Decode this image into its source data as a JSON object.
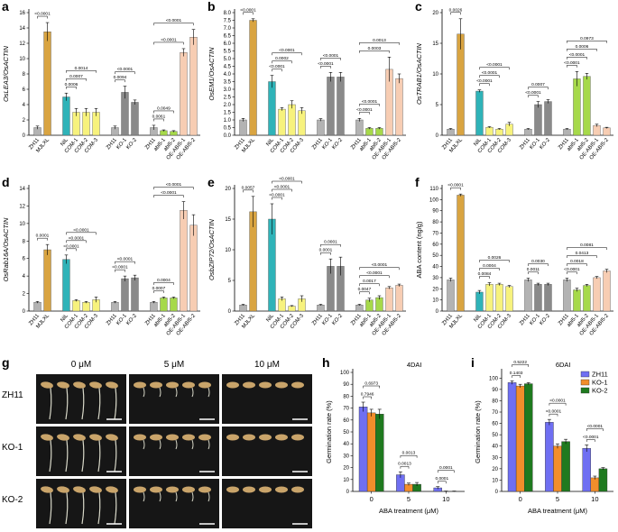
{
  "chart_data": [
    {
      "type": "bar",
      "panel": "a",
      "ylabel": "OsLEA3/OsACTIN",
      "categories": [
        "ZH11",
        "MJLXL",
        "NIL",
        "COM-1",
        "COM-2",
        "COM-3",
        "ZH11",
        "KO-1",
        "KO-2",
        "ZH11",
        "abi5-1",
        "abi5-2",
        "OE-ABI5-1",
        "OE-ABI5-2"
      ],
      "values": [
        1.0,
        13.5,
        5.0,
        3.0,
        3.0,
        3.0,
        1.0,
        5.6,
        4.3,
        1.0,
        0.6,
        0.5,
        10.8,
        12.8
      ],
      "errors": [
        0.2,
        1.2,
        0.5,
        0.5,
        0.5,
        0.5,
        0.2,
        0.8,
        0.3,
        0.3,
        0.1,
        0.1,
        0.5,
        1.0
      ],
      "colors": [
        "#b3b3b3",
        "#d9a441",
        "#2fb3b8",
        "#f7f27d",
        "#f7f27d",
        "#f7f27d",
        "#b3b3b3",
        "#8a8a8a",
        "#8a8a8a",
        "#b3b3b3",
        "#a6d94a",
        "#a6d94a",
        "#f7cdb3",
        "#f7cdb3"
      ],
      "ylim": [
        0,
        16
      ],
      "yticks": [
        0,
        2,
        4,
        6,
        8,
        10,
        12,
        14,
        16
      ],
      "annotations": [
        "<0.0001",
        "0.0006",
        "0.0007",
        "0.0014",
        "0.0094",
        "<0.0001",
        "0.0061",
        "0.0049",
        "<0.0001",
        "<0.0001"
      ]
    },
    {
      "type": "bar",
      "panel": "b",
      "ylabel": "OsEM1/OsACTIN",
      "categories": [
        "ZH11",
        "MJLXL",
        "NIL",
        "COM-1",
        "COM-2",
        "COM-3",
        "ZH11",
        "KO-1",
        "KO-2",
        "ZH11",
        "abi5-1",
        "abi5-2",
        "OE-ABI5-1",
        "OE-ABI5-2"
      ],
      "values": [
        1.0,
        7.5,
        3.5,
        1.7,
        2.0,
        1.6,
        1.0,
        3.8,
        3.8,
        1.0,
        0.45,
        0.45,
        4.3,
        3.7
      ],
      "errors": [
        0.1,
        0.1,
        0.4,
        0.1,
        0.25,
        0.2,
        0.08,
        0.3,
        0.3,
        0.1,
        0.05,
        0.05,
        0.8,
        0.3
      ],
      "colors": [
        "#b3b3b3",
        "#d9a441",
        "#2fb3b8",
        "#f7f27d",
        "#f7f27d",
        "#f7f27d",
        "#b3b3b3",
        "#8a8a8a",
        "#8a8a8a",
        "#b3b3b3",
        "#a6d94a",
        "#a6d94a",
        "#f7cdb3",
        "#f7cdb3"
      ],
      "ylim": [
        0,
        8
      ],
      "yticks": [
        {
          "value": 0,
          "label": "0.0"
        },
        0.5,
        {
          "value": 1,
          "label": "1.0"
        },
        1.5,
        {
          "value": 2,
          "label": "2.0"
        },
        2.5,
        {
          "value": 3,
          "label": "3.0"
        },
        3.5,
        {
          "value": 4,
          "label": "4.0"
        },
        4.5,
        {
          "value": 5,
          "label": "5.0"
        },
        5.5,
        {
          "value": 6,
          "label": "6.0"
        },
        6.5,
        {
          "value": 7,
          "label": "7.0"
        },
        7.5,
        {
          "value": 8,
          "label": "8.0"
        }
      ],
      "annotations": [
        "<0.0001",
        "<0.0001",
        "0.0002",
        "<0.0001",
        "<0.0001",
        "<0.0001",
        "<0.0001",
        "<0.0001",
        "0.0003",
        "0.0013"
      ]
    },
    {
      "type": "bar",
      "panel": "c",
      "ylabel": "OsTRAB1/OsACTIN",
      "categories": [
        "ZH11",
        "MJLXL",
        "NIL",
        "COM-1",
        "COM-2",
        "COM-3",
        "ZH11",
        "KO-1",
        "KO-2",
        "ZH11",
        "abi5-1",
        "abi5-2",
        "OE-ABI5-1",
        "OE-ABI5-2"
      ],
      "values": [
        1.0,
        16.5,
        7.2,
        1.3,
        1.0,
        1.8,
        1.0,
        5.0,
        5.5,
        1.0,
        9.2,
        9.6,
        1.6,
        1.2
      ],
      "errors": [
        0.1,
        2.5,
        0.2,
        0.1,
        0.1,
        0.3,
        0.1,
        0.5,
        0.3,
        0.1,
        1.2,
        0.5,
        0.2,
        0.1
      ],
      "colors": [
        "#b3b3b3",
        "#d9a441",
        "#2fb3b8",
        "#f7f27d",
        "#f7f27d",
        "#f7f27d",
        "#b3b3b3",
        "#8a8a8a",
        "#8a8a8a",
        "#b3b3b3",
        "#a6d94a",
        "#a6d94a",
        "#f7cdb3",
        "#f7cdb3"
      ],
      "ylim": [
        0,
        20
      ],
      "yticks": [
        0,
        5,
        10,
        15,
        20
      ],
      "annotations": [
        "0.0026",
        "<0.0001",
        "<0.0001",
        "<0.0001",
        "<0.0001",
        "0.0007",
        "<0.0001",
        "<0.0001",
        "0.0006",
        "0.0973"
      ]
    },
    {
      "type": "bar",
      "panel": "d",
      "ylabel": "OsRab16A/OsACTIN",
      "categories": [
        "ZH11",
        "MJLXL",
        "NIL",
        "COM-1",
        "COM-2",
        "COM-3",
        "ZH11",
        "KO-1",
        "KO-2",
        "ZH11",
        "abi5-1",
        "abi5-2",
        "OE-ABI5-1",
        "OE-ABI5-2"
      ],
      "values": [
        1.0,
        7.0,
        5.9,
        1.2,
        1.0,
        1.3,
        1.0,
        3.7,
        3.8,
        1.0,
        1.5,
        1.5,
        11.5,
        9.8
      ],
      "errors": [
        0.1,
        0.6,
        0.5,
        0.1,
        0.1,
        0.3,
        0.1,
        0.3,
        0.3,
        0.1,
        0.1,
        0.1,
        1.0,
        1.2
      ],
      "colors": [
        "#b3b3b3",
        "#d9a441",
        "#2fb3b8",
        "#f7f27d",
        "#f7f27d",
        "#f7f27d",
        "#b3b3b3",
        "#8a8a8a",
        "#8a8a8a",
        "#b3b3b3",
        "#a6d94a",
        "#a6d94a",
        "#f7cdb3",
        "#f7cdb3"
      ],
      "ylim": [
        0,
        14
      ],
      "yticks": [
        0,
        2,
        4,
        6,
        8,
        10,
        12,
        14
      ],
      "annotations": [
        "0.0001",
        "<0.0001",
        "<0.0001",
        "<0.0001",
        "<0.0001",
        "<0.0001",
        "0.0007",
        "0.0004",
        "<0.0001",
        "<0.0001"
      ]
    },
    {
      "type": "bar",
      "panel": "e",
      "ylabel": "OsbZIP72/OsACTIN",
      "categories": [
        "ZH11",
        "MJLXL",
        "NIL",
        "COM-1",
        "COM-2",
        "COM-3",
        "ZH11",
        "KO-1",
        "KO-2",
        "ZH11",
        "abi5-1",
        "abi5-2",
        "OE-ABI5-1",
        "OE-ABI5-2"
      ],
      "values": [
        1.0,
        16.2,
        15.0,
        2.0,
        0.8,
        2.0,
        1.0,
        7.3,
        7.3,
        1.0,
        1.8,
        2.2,
        3.8,
        4.2
      ],
      "errors": [
        0.1,
        2.5,
        2.5,
        0.3,
        0.1,
        0.5,
        0.1,
        1.2,
        1.5,
        0.1,
        0.3,
        0.3,
        0.2,
        0.2
      ],
      "colors": [
        "#b3b3b3",
        "#d9a441",
        "#2fb3b8",
        "#f7f27d",
        "#f7f27d",
        "#f7f27d",
        "#b3b3b3",
        "#8a8a8a",
        "#8a8a8a",
        "#b3b3b3",
        "#a6d94a",
        "#a6d94a",
        "#f7cdb3",
        "#f7cdb3"
      ],
      "ylim": [
        0,
        20
      ],
      "yticks": [
        0,
        5,
        10,
        15,
        20
      ],
      "annotations": [
        "0.0057",
        "<0.0001",
        "<0.0001",
        "<0.0001",
        "0.0001",
        "0.0001",
        "0.0047",
        "0.0017",
        "<0.0001",
        "<0.0001"
      ]
    },
    {
      "type": "bar",
      "panel": "f",
      "ylabel": "ABA content (ng/g)",
      "categories": [
        "ZH11",
        "MJLXL",
        "NIL",
        "COM-1",
        "COM-2",
        "COM-3",
        "ZH11",
        "KO-1",
        "KO-2",
        "ZH11",
        "abi5-1",
        "abi5-2",
        "OE-ABI5-1",
        "OE-ABI5-2"
      ],
      "values": [
        28,
        104,
        17,
        24,
        24,
        22,
        28,
        24,
        24,
        28,
        19,
        23,
        30,
        36
      ],
      "errors": [
        1.5,
        1,
        1.5,
        1.5,
        1,
        1,
        1.5,
        1,
        1,
        1.5,
        1.5,
        1,
        1,
        1.5
      ],
      "colors": [
        "#b3b3b3",
        "#d9a441",
        "#2fb3b8",
        "#f7f27d",
        "#f7f27d",
        "#f7f27d",
        "#b3b3b3",
        "#8a8a8a",
        "#8a8a8a",
        "#b3b3b3",
        "#a6d94a",
        "#a6d94a",
        "#f7cdb3",
        "#f7cdb3"
      ],
      "ylim": [
        0,
        110
      ],
      "yticks": [
        0,
        10,
        20,
        30,
        40,
        50,
        60,
        70,
        80,
        90,
        100,
        110
      ],
      "annotations": [
        "<0.0001",
        "0.0084",
        "0.0004",
        "0.0026",
        "0.0011",
        "0.0030",
        "<0.0001",
        "0.0018",
        "0.0413",
        "0.0081"
      ]
    },
    {
      "type": "grouped-bar",
      "panel": "h",
      "title": "4DAI",
      "xlabel": "ABA treatment (μM)",
      "ylabel": "Germination rate (%)",
      "categories": [
        "0",
        "5",
        "10"
      ],
      "series": [
        {
          "color": "#6f6ff2",
          "values": [
            71,
            14,
            3
          ],
          "errors": [
            4,
            2.5,
            1
          ]
        },
        {
          "color": "#f28e2b",
          "values": [
            66,
            6,
            0
          ],
          "errors": [
            3,
            1,
            0.3
          ]
        },
        {
          "color": "#1f7a1f",
          "values": [
            65,
            6,
            0
          ],
          "errors": [
            4,
            1.5,
            0.3
          ]
        }
      ],
      "ylim": [
        0,
        100
      ],
      "yticks": [
        0,
        10,
        20,
        30,
        40,
        50,
        60,
        70,
        80,
        90,
        100
      ],
      "annotations": [
        "0.6973",
        "0.7946",
        "0.0013",
        "0.0013",
        "0.0001",
        "0.0001"
      ]
    },
    {
      "type": "grouped-bar",
      "panel": "i",
      "title": "6DAI",
      "xlabel": "ABA treatment (μM)",
      "ylabel": "Germination rate (%)",
      "categories": [
        "0",
        "5",
        "10"
      ],
      "series": [
        {
          "name": "ZH11",
          "color": "#6f6ff2",
          "values": [
            96,
            61,
            38
          ],
          "errors": [
            1.5,
            2.5,
            3
          ]
        },
        {
          "name": "KO-1",
          "color": "#f28e2b",
          "values": [
            93,
            40,
            12
          ],
          "errors": [
            1.5,
            2,
            1.5
          ]
        },
        {
          "name": "KO-2",
          "color": "#1f7a1f",
          "values": [
            95,
            44,
            20
          ],
          "errors": [
            1,
            2,
            1
          ]
        }
      ],
      "ylim": [
        0,
        105
      ],
      "yticks": [
        0,
        10,
        20,
        30,
        40,
        50,
        60,
        70,
        80,
        90,
        100
      ],
      "legend": "upper right",
      "annotations": [
        "0.5222",
        "0.1403",
        "<0.0001",
        "<0.0001",
        "<0.0001",
        "<0.0001"
      ]
    }
  ],
  "photo_panel": {
    "panel": "g",
    "columns": [
      "0 μM",
      "5 μM",
      "10 μM"
    ],
    "rows": [
      "ZH11",
      "KO-1",
      "KO-2"
    ]
  }
}
